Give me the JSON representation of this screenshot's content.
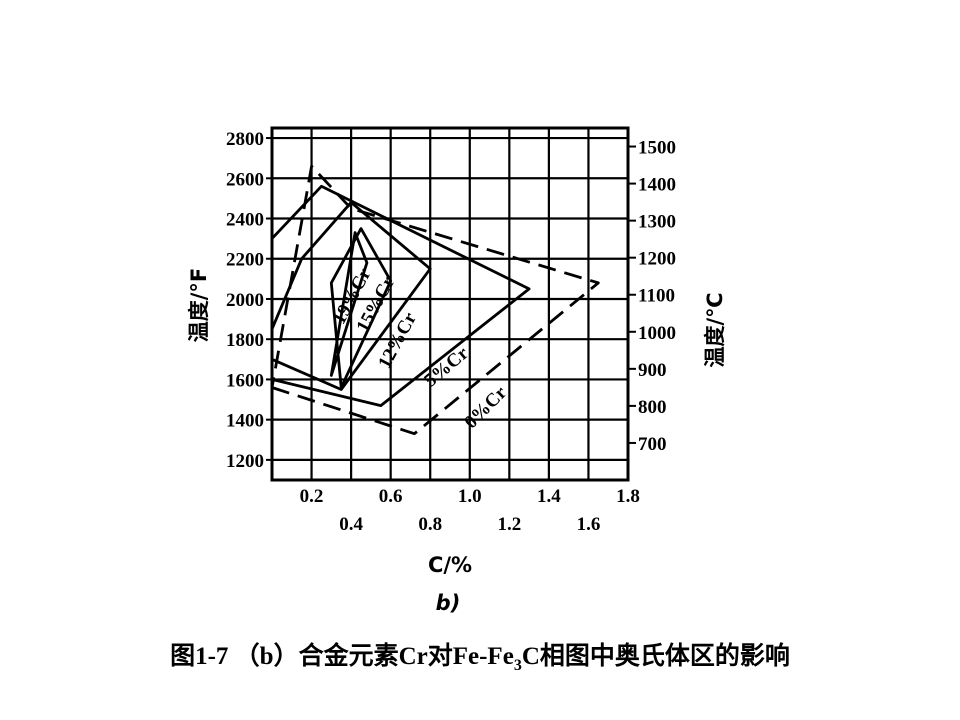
{
  "chart_data": {
    "type": "line",
    "title": "",
    "subfigure_label": "b)",
    "x_axis": {
      "label": "C/%",
      "range": [
        0.0,
        1.8
      ],
      "ticks_upper_row": [
        "0.2",
        "0.6",
        "1.0",
        "1.4",
        "1.8"
      ],
      "ticks_lower_row": [
        "0.4",
        "0.8",
        "1.2",
        "1.6"
      ]
    },
    "y_axis_left": {
      "label": "温度/°F",
      "range": [
        1100,
        2850
      ],
      "ticks": [
        "1200",
        "1400",
        "1600",
        "1800",
        "2000",
        "2200",
        "2400",
        "2600",
        "2800"
      ]
    },
    "y_axis_right": {
      "label": "温度/℃",
      "range": [
        600,
        1550
      ],
      "ticks": [
        "700",
        "800",
        "900",
        "1000",
        "1100",
        "1200",
        "1300",
        "1400",
        "1500"
      ]
    },
    "grid": true,
    "series": [
      {
        "name": "0%Cr",
        "style": "dashed",
        "points": [
          [
            0.0,
            1560
          ],
          [
            0.72,
            1330
          ],
          [
            1.65,
            2080
          ],
          [
            0.4,
            2450
          ],
          [
            0.2,
            2660
          ]
        ]
      },
      {
        "name": "5%Cr",
        "style": "solid",
        "points": [
          [
            0.0,
            1600
          ],
          [
            0.55,
            1470
          ],
          [
            1.3,
            2050
          ],
          [
            0.25,
            2560
          ],
          [
            0.0,
            2300
          ]
        ]
      },
      {
        "name": "12%Cr",
        "style": "solid",
        "points": [
          [
            0.0,
            1700
          ],
          [
            0.35,
            1550
          ],
          [
            0.8,
            2150
          ],
          [
            0.4,
            2480
          ],
          [
            0.15,
            2200
          ],
          [
            0.0,
            1850
          ]
        ]
      },
      {
        "name": "15%Cr",
        "style": "solid",
        "points": [
          [
            0.35,
            1560
          ],
          [
            0.6,
            2090
          ],
          [
            0.45,
            2350
          ],
          [
            0.3,
            2080
          ]
        ]
      },
      {
        "name": "19%Cr",
        "style": "solid",
        "points": [
          [
            0.3,
            1620
          ],
          [
            0.42,
            2330
          ],
          [
            0.48,
            2180
          ]
        ]
      }
    ]
  },
  "caption": {
    "prefix": "图1-7 （b）合金元素Cr对Fe-Fe",
    "subscript": "3",
    "suffix": "C相图中奥氏体区的影响"
  }
}
